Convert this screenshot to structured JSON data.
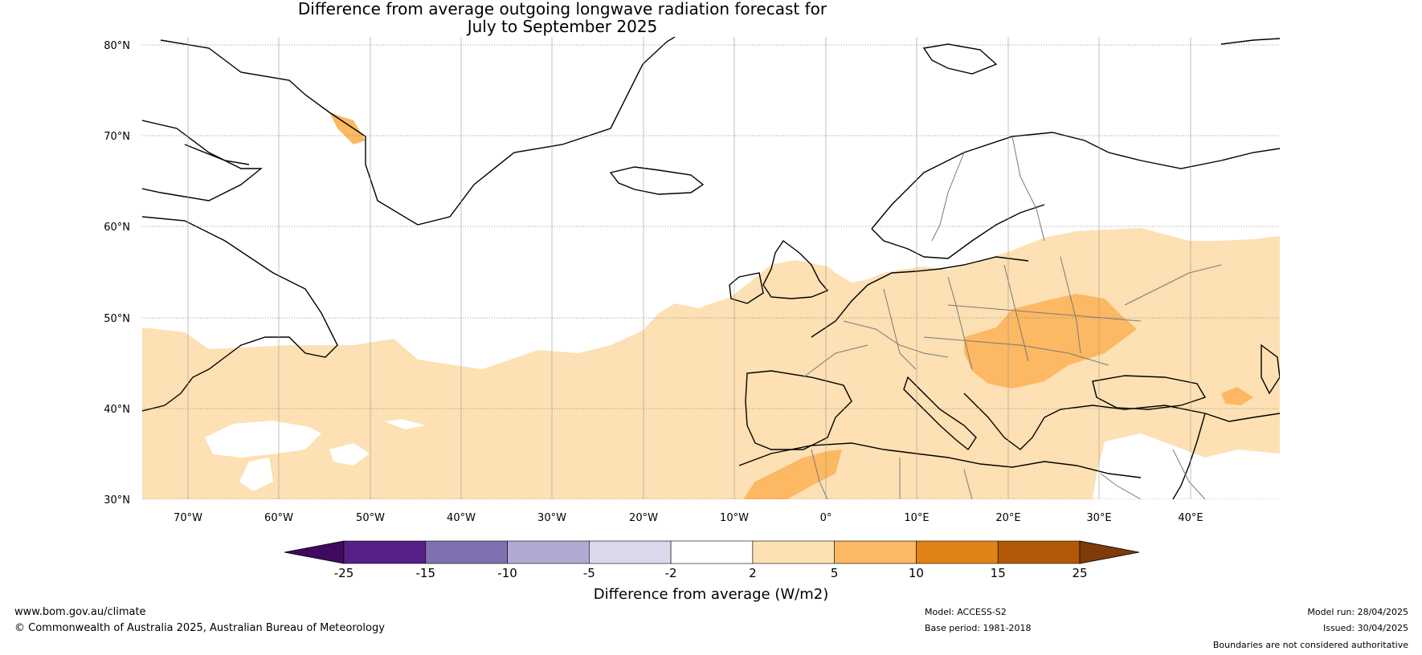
{
  "title": {
    "line1": "Difference from average outgoing longwave radiation forecast for",
    "line2": "July to September 2025"
  },
  "map": {
    "lat_ticks": [
      "80°N",
      "70°N",
      "60°N",
      "50°N",
      "40°N",
      "30°N"
    ],
    "lon_ticks": [
      "70°W",
      "60°W",
      "50°W",
      "40°W",
      "30°W",
      "20°W",
      "10°W",
      "0°",
      "10°E",
      "20°E",
      "30°E",
      "40°E"
    ],
    "ocean_color": "#ffffff",
    "land_line_color": "#000000",
    "border_color": "#7a7a7a"
  },
  "colorbar": {
    "title": "Difference from average (W/m2)",
    "ticks": [
      "-25",
      "-15",
      "-10",
      "-5",
      "-2",
      "2",
      "5",
      "10",
      "15",
      "25"
    ],
    "colors": [
      "#3f0a5e",
      "#572088",
      "#8170b0",
      "#b1a9d4",
      "#d9d9eb",
      "#ffffff",
      "#fde0b3",
      "#fcb862",
      "#e08214",
      "#b35806",
      "#7f3b08"
    ]
  },
  "footer": {
    "url": "www.bom.gov.au/climate",
    "copyright": "© Commonwealth of Australia 2025, Australian Bureau of Meteorology",
    "model": "Model: ACCESS-S2",
    "base_period": "Base period: 1981-2018",
    "model_run": "Model run: 28/04/2025",
    "issued": "Issued: 30/04/2025",
    "disclaimer": "Boundaries are not considered authoritative"
  }
}
